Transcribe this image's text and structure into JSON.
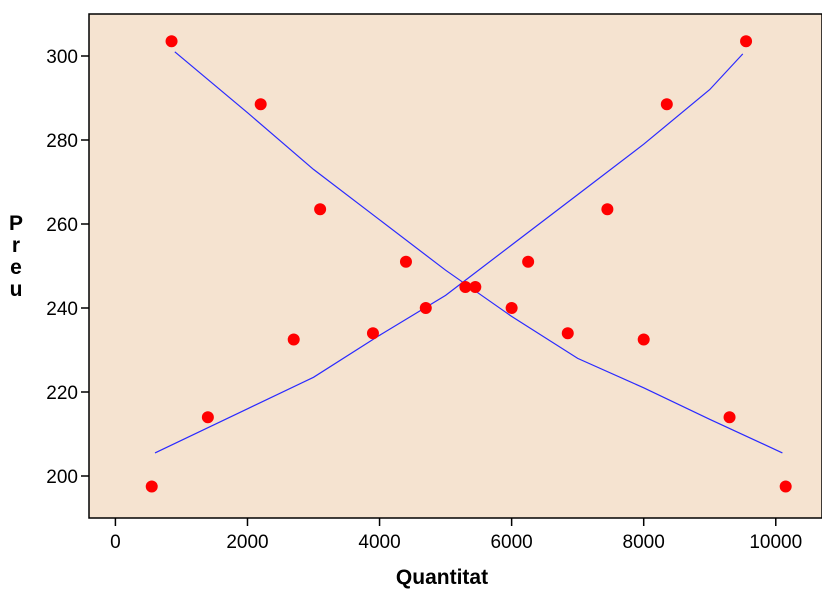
{
  "chart_data": {
    "type": "scatter",
    "title": "",
    "xlabel": "Quantitat",
    "ylabel": "Preu",
    "xlim": [
      -400,
      10700
    ],
    "ylim": [
      190,
      310
    ],
    "x_ticks": [
      0,
      2000,
      4000,
      6000,
      8000,
      10000
    ],
    "y_ticks": [
      200,
      220,
      240,
      260,
      280,
      300
    ],
    "grid": false,
    "legend": "none",
    "colors": {
      "plot_background": "#f5e3d0",
      "points": "#ff0000",
      "lines": "#2a2aff",
      "axis": "#000000"
    },
    "series": [
      {
        "values_type": "points",
        "points": [
          {
            "x": 550,
            "y": 197.5
          },
          {
            "x": 1400,
            "y": 214
          },
          {
            "x": 2700,
            "y": 232.5
          },
          {
            "x": 3900,
            "y": 234
          },
          {
            "x": 4400,
            "y": 251
          },
          {
            "x": 4700,
            "y": 240
          },
          {
            "x": 5300,
            "y": 245
          },
          {
            "x": 850,
            "y": 303.5
          },
          {
            "x": 2200,
            "y": 288.5
          },
          {
            "x": 3100,
            "y": 263.5
          },
          {
            "x": 5450,
            "y": 245
          },
          {
            "x": 6000,
            "y": 240
          },
          {
            "x": 6250,
            "y": 251
          },
          {
            "x": 6850,
            "y": 234
          },
          {
            "x": 7450,
            "y": 263.5
          },
          {
            "x": 8000,
            "y": 232.5
          },
          {
            "x": 8350,
            "y": 288.5
          },
          {
            "x": 9300,
            "y": 214
          },
          {
            "x": 9550,
            "y": 303.5
          },
          {
            "x": 10150,
            "y": 197.5
          }
        ]
      },
      {
        "values_type": "fit-line",
        "points": [
          {
            "x": 600,
            "y": 205.5
          },
          {
            "x": 2000,
            "y": 216
          },
          {
            "x": 3000,
            "y": 223.5
          },
          {
            "x": 4000,
            "y": 233.5
          },
          {
            "x": 5000,
            "y": 243
          },
          {
            "x": 6000,
            "y": 255
          },
          {
            "x": 7000,
            "y": 267
          },
          {
            "x": 8000,
            "y": 279
          },
          {
            "x": 9000,
            "y": 292
          },
          {
            "x": 9500,
            "y": 300.5
          }
        ]
      },
      {
        "values_type": "fit-line",
        "points": [
          {
            "x": 900,
            "y": 301
          },
          {
            "x": 2000,
            "y": 286.5
          },
          {
            "x": 3000,
            "y": 273
          },
          {
            "x": 4000,
            "y": 261
          },
          {
            "x": 5000,
            "y": 249
          },
          {
            "x": 6000,
            "y": 238
          },
          {
            "x": 7000,
            "y": 228
          },
          {
            "x": 8000,
            "y": 221
          },
          {
            "x": 9000,
            "y": 213.5
          },
          {
            "x": 10100,
            "y": 205.5
          }
        ]
      }
    ]
  }
}
